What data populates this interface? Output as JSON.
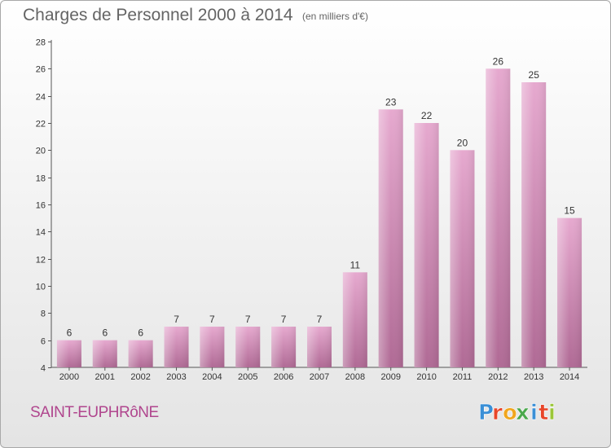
{
  "page": {
    "title": "Charges de Personnel 2000 à 2014",
    "subtitle": "(en milliers d'€)",
    "commune": "SAINT-EUPHRôNE",
    "logo": {
      "letters": [
        "P",
        "r",
        "o",
        "x",
        "i",
        "t",
        "i"
      ],
      "colors": [
        "#3a8fd6",
        "#e8462a",
        "#f0a61e",
        "#4aa84c",
        "#3a8fd6",
        "#e8462a",
        "#9bc638"
      ]
    }
  },
  "chart_data": {
    "type": "bar",
    "title": "Charges de Personnel 2000 à 2014",
    "subtitle": "(en milliers d'€)",
    "categories": [
      "2000",
      "2001",
      "2002",
      "2003",
      "2004",
      "2005",
      "2006",
      "2007",
      "2008",
      "2009",
      "2010",
      "2011",
      "2012",
      "2013",
      "2014"
    ],
    "values": [
      6,
      6,
      6,
      7,
      7,
      7,
      7,
      7,
      11,
      23,
      22,
      20,
      26,
      25,
      15
    ],
    "ylim": [
      4,
      28
    ],
    "yticks": [
      4,
      6,
      8,
      10,
      12,
      14,
      16,
      18,
      20,
      22,
      24,
      26,
      28
    ],
    "grid": false,
    "bar_color_top": "#e6a9cf",
    "bar_color_bottom": "#b06a95"
  }
}
